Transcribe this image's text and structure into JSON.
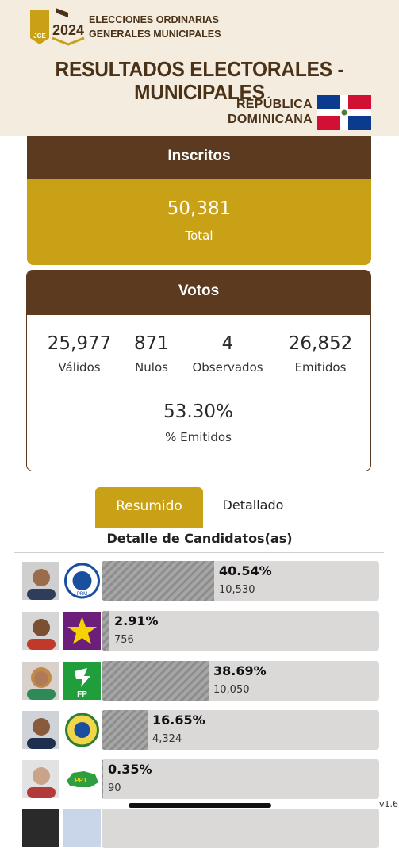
{
  "header": {
    "logo_year": "2024",
    "logo_org": "JCE",
    "election_line1": "ELECCIONES ORDINARIAS",
    "election_line2": "GENERALES MUNICIPALES",
    "title": "RESULTADOS ELECTORALES - MUNICIPALES",
    "country_line1": "REPÚBLICA",
    "country_line2": "DOMINICANA"
  },
  "inscritos": {
    "title": "Inscritos",
    "value": "50,381",
    "label": "Total"
  },
  "votos": {
    "title": "Votos",
    "stats": [
      {
        "value": "25,977",
        "label": "Válidos"
      },
      {
        "value": "871",
        "label": "Nulos"
      },
      {
        "value": "4",
        "label": "Observados"
      },
      {
        "value": "26,852",
        "label": "Emitidos"
      }
    ],
    "percent": {
      "value": "53.30%",
      "label": "% Emitidos"
    }
  },
  "tabs": {
    "active": "Resumido",
    "inactive": "Detallado"
  },
  "section_title": "Detalle de Candidatos(as)",
  "candidates": [
    {
      "percent_label": "40.54%",
      "votes": "10,530",
      "share": 0.4054,
      "party_icon": "prm-seal-icon",
      "party_label": "PRM"
    },
    {
      "percent_label": "2.91%",
      "votes": "756",
      "share": 0.0291,
      "party_icon": "yellow-star-icon",
      "party_label": ""
    },
    {
      "percent_label": "38.69%",
      "votes": "10,050",
      "share": 0.3869,
      "party_icon": "fp-logo-icon",
      "party_label": "FP"
    },
    {
      "percent_label": "16.65%",
      "votes": "4,324",
      "share": 0.1665,
      "party_icon": "party-seal-icon",
      "party_label": ""
    },
    {
      "percent_label": "0.35%",
      "votes": "90",
      "share": 0.0035,
      "party_icon": "ppt-map-icon",
      "party_label": "PPT"
    }
  ],
  "version": "v1.6",
  "colors": {
    "brown": "#5b3a1f",
    "gold": "#c9a116",
    "cream": "#f4ecde"
  }
}
